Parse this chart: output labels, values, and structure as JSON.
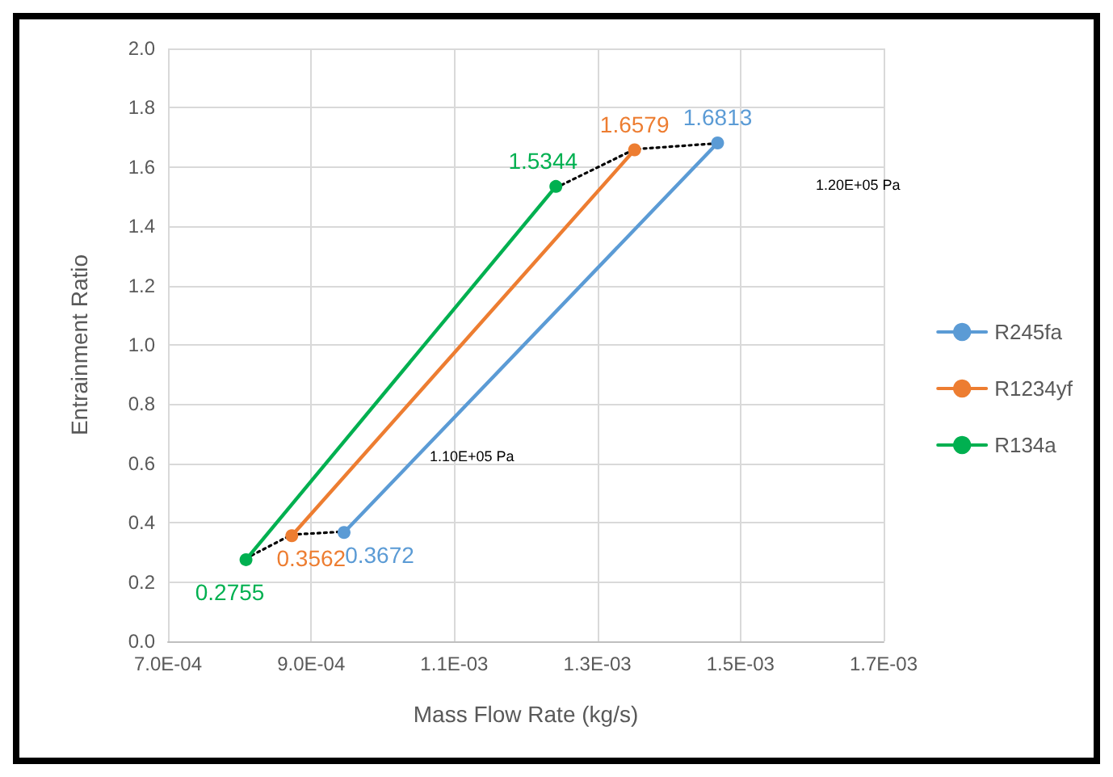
{
  "chart_data": {
    "type": "line",
    "xlabel": "Mass Flow Rate (kg/s)",
    "ylabel": "Entrainment Ratio",
    "xlim": [
      0.0007,
      0.0017
    ],
    "xticks": [
      {
        "value": 0.0007,
        "label": "7.0E-04"
      },
      {
        "value": 0.0009,
        "label": "9.0E-04"
      },
      {
        "value": 0.0011,
        "label": "1.1E-03"
      },
      {
        "value": 0.0013,
        "label": "1.3E-03"
      },
      {
        "value": 0.0015,
        "label": "1.5E-03"
      },
      {
        "value": 0.0017,
        "label": "1.7E-03"
      }
    ],
    "ylim": [
      0,
      2
    ],
    "yticks": [
      {
        "value": 0,
        "label": "0.0"
      },
      {
        "value": 0.2,
        "label": "0.2"
      },
      {
        "value": 0.4,
        "label": "0.4"
      },
      {
        "value": 0.6,
        "label": "0.6"
      },
      {
        "value": 0.8,
        "label": "0.8"
      },
      {
        "value": 1,
        "label": "1.0"
      },
      {
        "value": 1.2,
        "label": "1.2"
      },
      {
        "value": 1.4,
        "label": "1.4"
      },
      {
        "value": 1.6,
        "label": "1.6"
      },
      {
        "value": 1.8,
        "label": "1.8"
      },
      {
        "value": 2,
        "label": "2.0"
      }
    ],
    "grid": true,
    "legend": "right",
    "marker": "circle",
    "series": [
      {
        "name": "R245fa",
        "color": "#5b9bd5",
        "x": [
          0.000946,
          0.001468
        ],
        "values": [
          0.3672,
          1.6813
        ],
        "value_labels": [
          "0.3672",
          "1.6813"
        ]
      },
      {
        "name": "R1234yf",
        "color": "#ed7d31",
        "x": [
          0.000873,
          0.001352
        ],
        "values": [
          0.3562,
          1.6579
        ],
        "value_labels": [
          "0.3562",
          "1.6579"
        ]
      },
      {
        "name": "R134a",
        "color": "#00b050",
        "x": [
          0.000809,
          0.001242
        ],
        "values": [
          0.2755,
          1.5344
        ],
        "value_labels": [
          "0.2755",
          "1.5344"
        ]
      },
      {
        "color": "#000000",
        "line_style": "dotted",
        "marker": "none",
        "x": [
          0.000809,
          0.000873,
          0.000946
        ],
        "values": [
          0.28,
          0.36,
          0.37
        ]
      },
      {
        "color": "#000000",
        "line_style": "dotted",
        "marker": "none",
        "x": [
          0.001242,
          0.001352,
          0.001468
        ],
        "values": [
          1.53,
          1.66,
          1.68
        ]
      }
    ],
    "annotations": [
      "1.20E+05 Pa",
      "1.10E+05 Pa"
    ]
  }
}
